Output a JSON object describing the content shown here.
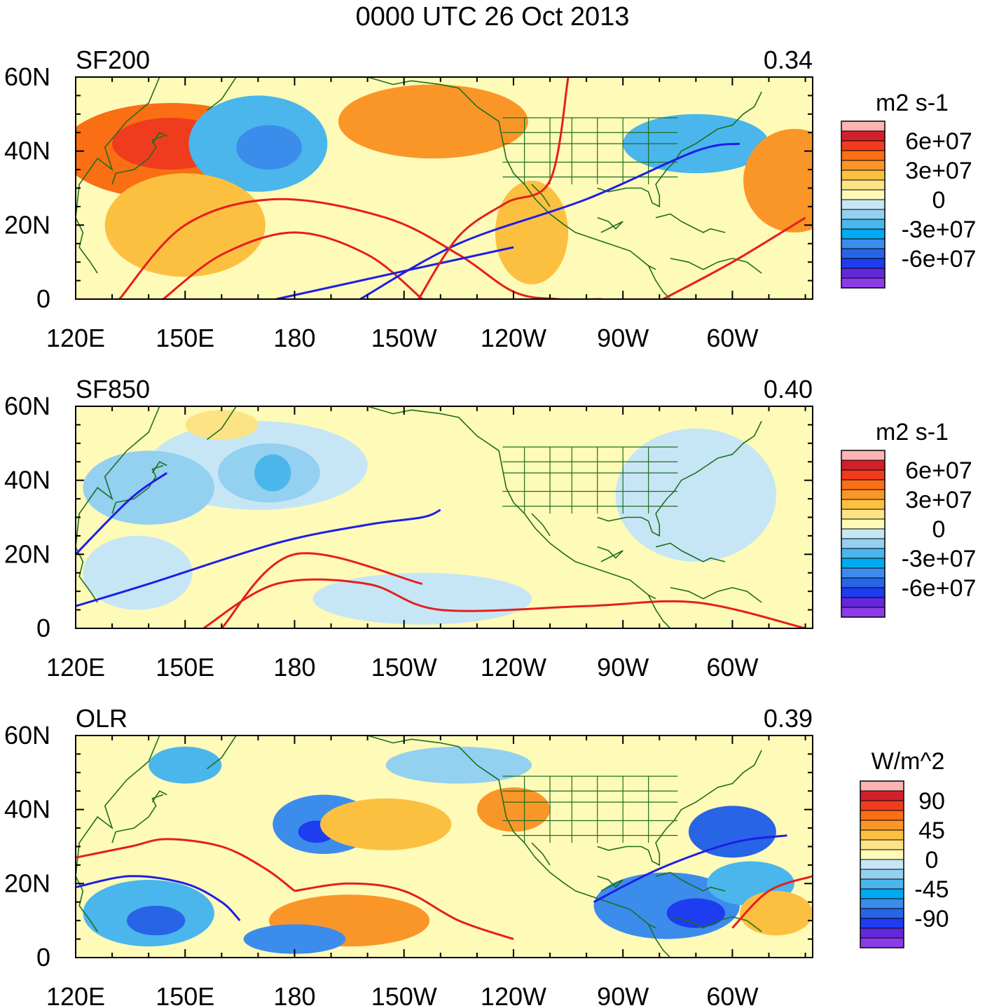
{
  "figure": {
    "title": "0000 UTC 26 Oct 2013"
  },
  "chart_data": [
    {
      "type": "heatmap",
      "name": "SF200",
      "left_label": "SF200",
      "right_label": "0.34",
      "units": "m2 s-1",
      "colorbar_labels": [
        "6e+07",
        "3e+07",
        "0",
        "-3e+07",
        "-6e+07"
      ],
      "colorbar_colors": [
        "#ffb3b3",
        "#d2202a",
        "#f03c1e",
        "#fa6e14",
        "#fa9628",
        "#fcc040",
        "#fce486",
        "#fefab8",
        "#c6e6f6",
        "#94d0f0",
        "#4ab6ec",
        "#00aaf0",
        "#3c8cec",
        "#2864e6",
        "#1e3cf0",
        "#6428dc",
        "#8c3ce6"
      ],
      "x_ticks": [
        "120E",
        "150E",
        "180",
        "150W",
        "120W",
        "90W",
        "60W"
      ],
      "y_ticks": [
        "60N",
        "40N",
        "20N",
        "0"
      ],
      "xlim_deg": [
        120,
        322
      ],
      "ylim_deg": [
        0,
        60
      ],
      "fill_blobs": [
        {
          "lon": 146,
          "lat": 40,
          "rx": 30,
          "ry": 13,
          "color": "#fa6e14"
        },
        {
          "lon": 146,
          "lat": 42,
          "rx": 16,
          "ry": 7,
          "color": "#f03c1e"
        },
        {
          "lon": 170,
          "lat": 42,
          "rx": 19,
          "ry": 13,
          "color": "#4ab6ec"
        },
        {
          "lon": 173,
          "lat": 41,
          "rx": 9,
          "ry": 6,
          "color": "#3c8cec"
        },
        {
          "lon": 218,
          "lat": 48,
          "rx": 26,
          "ry": 10,
          "color": "#fa9628"
        },
        {
          "lon": 290,
          "lat": 42,
          "rx": 20,
          "ry": 8,
          "color": "#4ab6ec"
        },
        {
          "lon": 317,
          "lat": 32,
          "rx": 14,
          "ry": 14,
          "color": "#fa9628"
        },
        {
          "lon": 150,
          "lat": 20,
          "rx": 22,
          "ry": 14,
          "color": "#fcc040"
        },
        {
          "lon": 245,
          "lat": 18,
          "rx": 10,
          "ry": 14,
          "color": "#fcc040"
        }
      ],
      "contours": [
        {
          "color": "red",
          "lon": [
            132,
            150,
            175,
            205,
            225,
            240,
            252,
            264
          ],
          "lat": [
            0,
            20,
            27,
            22,
            12,
            2,
            0,
            0
          ]
        },
        {
          "color": "red",
          "lon": [
            144,
            160,
            180,
            200,
            215
          ],
          "lat": [
            0,
            12,
            18,
            12,
            0
          ]
        },
        {
          "color": "blue",
          "lon": [
            198,
            225,
            260,
            290,
            302
          ],
          "lat": [
            0,
            15,
            27,
            40,
            42
          ]
        },
        {
          "color": "blue",
          "lon": [
            175,
            212,
            240
          ],
          "lat": [
            0,
            8,
            14
          ]
        },
        {
          "color": "red",
          "lon": [
            214,
            225,
            238,
            250,
            255
          ],
          "lat": [
            0,
            17,
            26,
            32,
            60
          ]
        },
        {
          "color": "red",
          "lon": [
            281,
            300,
            320
          ],
          "lat": [
            0,
            10,
            22
          ]
        }
      ]
    },
    {
      "type": "heatmap",
      "name": "SF850",
      "left_label": "SF850",
      "right_label": "0.40",
      "units": "m2 s-1",
      "colorbar_labels": [
        "6e+07",
        "3e+07",
        "0",
        "-3e+07",
        "-6e+07"
      ],
      "colorbar_colors": [
        "#ffb3b3",
        "#d2202a",
        "#f03c1e",
        "#fa6e14",
        "#fa9628",
        "#fcc040",
        "#fce486",
        "#fefab8",
        "#c6e6f6",
        "#94d0f0",
        "#4ab6ec",
        "#00aaf0",
        "#3c8cec",
        "#2864e6",
        "#1e3cf0",
        "#6428dc",
        "#8c3ce6"
      ],
      "x_ticks": [
        "120E",
        "150E",
        "180",
        "150W",
        "120W",
        "90W",
        "60W"
      ],
      "y_ticks": [
        "60N",
        "40N",
        "20N",
        "0"
      ],
      "xlim_deg": [
        120,
        322
      ],
      "ylim_deg": [
        0,
        60
      ],
      "fill_blobs": [
        {
          "lon": 170,
          "lat": 44,
          "rx": 30,
          "ry": 12,
          "color": "#c6e6f6"
        },
        {
          "lon": 173,
          "lat": 42,
          "rx": 14,
          "ry": 8,
          "color": "#94d0f0"
        },
        {
          "lon": 174,
          "lat": 42,
          "rx": 5,
          "ry": 5,
          "color": "#4ab6ec"
        },
        {
          "lon": 140,
          "lat": 38,
          "rx": 18,
          "ry": 10,
          "color": "#94d0f0"
        },
        {
          "lon": 137,
          "lat": 15,
          "rx": 15,
          "ry": 10,
          "color": "#c6e6f6"
        },
        {
          "lon": 290,
          "lat": 36,
          "rx": 22,
          "ry": 18,
          "color": "#c6e6f6"
        },
        {
          "lon": 215,
          "lat": 8,
          "rx": 30,
          "ry": 7,
          "color": "#c6e6f6"
        },
        {
          "lon": 160,
          "lat": 55,
          "rx": 10,
          "ry": 4,
          "color": "#fce486"
        }
      ],
      "contours": [
        {
          "color": "red",
          "lon": [
            155,
            175,
            200,
            220,
            260,
            290,
            320
          ],
          "lat": [
            0,
            12,
            12,
            5,
            6,
            7,
            0
          ]
        },
        {
          "color": "red",
          "lon": [
            160,
            180,
            215
          ],
          "lat": [
            0,
            20,
            12
          ]
        },
        {
          "color": "blue",
          "lon": [
            120,
            140,
            175,
            200,
            215,
            220
          ],
          "lat": [
            6,
            12,
            23,
            28,
            30,
            32
          ]
        },
        {
          "color": "blue",
          "lon": [
            120,
            135,
            145
          ],
          "lat": [
            20,
            35,
            42
          ]
        }
      ]
    },
    {
      "type": "heatmap",
      "name": "OLR",
      "left_label": "OLR",
      "right_label": "0.39",
      "units": "W/m^2",
      "colorbar_labels": [
        "90",
        "45",
        "0",
        "-45",
        "-90"
      ],
      "colorbar_colors": [
        "#ffb3b3",
        "#d2202a",
        "#f03c1e",
        "#fa6e14",
        "#fa9628",
        "#fcc040",
        "#fce486",
        "#fefab8",
        "#c6e6f6",
        "#94d0f0",
        "#4ab6ec",
        "#00aaf0",
        "#3c8cec",
        "#2864e6",
        "#1e3cf0",
        "#6428dc",
        "#8c3ce6"
      ],
      "x_ticks": [
        "120E",
        "150E",
        "180",
        "150W",
        "120W",
        "90W",
        "60W"
      ],
      "y_ticks": [
        "60N",
        "40N",
        "20N",
        "0"
      ],
      "xlim_deg": [
        120,
        322
      ],
      "ylim_deg": [
        0,
        60
      ],
      "fill_blobs": [
        {
          "lon": 140,
          "lat": 12,
          "rx": 18,
          "ry": 9,
          "color": "#4ab6ec"
        },
        {
          "lon": 142,
          "lat": 10,
          "rx": 8,
          "ry": 4,
          "color": "#2864e6"
        },
        {
          "lon": 188,
          "lat": 36,
          "rx": 14,
          "ry": 8,
          "color": "#3c8cec"
        },
        {
          "lon": 186,
          "lat": 34,
          "rx": 5,
          "ry": 3,
          "color": "#1e3cf0"
        },
        {
          "lon": 205,
          "lat": 36,
          "rx": 18,
          "ry": 7,
          "color": "#fcc040"
        },
        {
          "lon": 195,
          "lat": 10,
          "rx": 22,
          "ry": 7,
          "color": "#fa9628"
        },
        {
          "lon": 240,
          "lat": 40,
          "rx": 10,
          "ry": 6,
          "color": "#fa9628"
        },
        {
          "lon": 282,
          "lat": 14,
          "rx": 20,
          "ry": 9,
          "color": "#3c8cec"
        },
        {
          "lon": 290,
          "lat": 12,
          "rx": 8,
          "ry": 4,
          "color": "#1e3cf0"
        },
        {
          "lon": 300,
          "lat": 34,
          "rx": 12,
          "ry": 7,
          "color": "#2864e6"
        },
        {
          "lon": 305,
          "lat": 20,
          "rx": 12,
          "ry": 6,
          "color": "#4ab6ec"
        },
        {
          "lon": 312,
          "lat": 12,
          "rx": 10,
          "ry": 6,
          "color": "#fcc040"
        },
        {
          "lon": 180,
          "lat": 5,
          "rx": 14,
          "ry": 4,
          "color": "#3c8cec"
        },
        {
          "lon": 225,
          "lat": 52,
          "rx": 20,
          "ry": 5,
          "color": "#94d0f0"
        },
        {
          "lon": 150,
          "lat": 52,
          "rx": 10,
          "ry": 5,
          "color": "#4ab6ec"
        }
      ],
      "contours": [
        {
          "color": "red",
          "lon": [
            120,
            135,
            145,
            160,
            172,
            180
          ],
          "lat": [
            27,
            30,
            32,
            30,
            24,
            18
          ]
        },
        {
          "color": "red",
          "lon": [
            180,
            195,
            210,
            225,
            240
          ],
          "lat": [
            18,
            20,
            18,
            10,
            5
          ]
        },
        {
          "color": "blue",
          "lon": [
            120,
            135,
            150,
            160,
            165
          ],
          "lat": [
            19,
            22,
            20,
            15,
            10
          ]
        },
        {
          "color": "blue",
          "lon": [
            262,
            280,
            300,
            315
          ],
          "lat": [
            15,
            24,
            31,
            33
          ]
        },
        {
          "color": "red",
          "lon": [
            300,
            310,
            322
          ],
          "lat": [
            8,
            18,
            22
          ]
        }
      ]
    }
  ]
}
